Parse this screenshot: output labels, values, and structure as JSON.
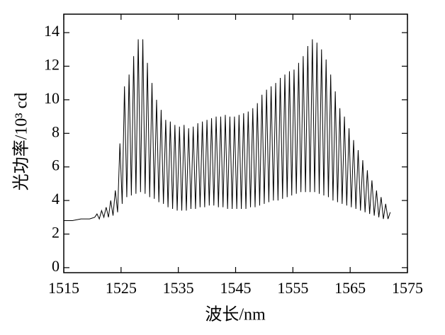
{
  "chart_data": {
    "type": "line",
    "x_label": "波长/nm",
    "y_label": "光功率/10³ cd",
    "xlim": [
      1515,
      1575
    ],
    "xticks": [
      1515,
      1525,
      1535,
      1545,
      1555,
      1565,
      1575
    ],
    "ylim": [
      -0.3,
      15.1
    ],
    "yticks": [
      0,
      2,
      4,
      6,
      8,
      10,
      12,
      14
    ],
    "color": "#000000",
    "x": [
      1515,
      1516.5,
      1518,
      1519.5,
      1520.4,
      1520.8,
      1521.2,
      1521.6,
      1522.0,
      1522.4,
      1522.8,
      1523.2,
      1523.6,
      1524.0,
      1524.4,
      1524.8,
      1525.2,
      1525.6,
      1526.0,
      1526.4,
      1526.8,
      1527.2,
      1527.6,
      1528.0,
      1528.4,
      1528.8,
      1529.2,
      1529.6,
      1530.0,
      1530.4,
      1530.8,
      1531.2,
      1531.6,
      1532.0,
      1532.4,
      1532.8,
      1533.2,
      1533.6,
      1534.0,
      1534.4,
      1534.8,
      1535.2,
      1535.6,
      1536.0,
      1536.4,
      1536.8,
      1537.2,
      1537.6,
      1538.0,
      1538.4,
      1538.8,
      1539.2,
      1539.6,
      1540.0,
      1540.4,
      1540.8,
      1541.2,
      1541.6,
      1542.0,
      1542.4,
      1542.8,
      1543.2,
      1543.6,
      1544.0,
      1544.4,
      1544.8,
      1545.2,
      1545.6,
      1546.0,
      1546.4,
      1546.8,
      1547.2,
      1547.6,
      1548.0,
      1548.4,
      1548.8,
      1549.2,
      1549.6,
      1550.0,
      1550.4,
      1550.8,
      1551.2,
      1551.6,
      1552.0,
      1552.4,
      1552.8,
      1553.2,
      1553.6,
      1554.0,
      1554.4,
      1554.8,
      1555.2,
      1555.6,
      1556.0,
      1556.4,
      1556.8,
      1557.2,
      1557.6,
      1558.0,
      1558.4,
      1558.8,
      1559.2,
      1559.6,
      1560.0,
      1560.4,
      1560.8,
      1561.2,
      1561.6,
      1562.0,
      1562.4,
      1562.8,
      1563.2,
      1563.6,
      1564.0,
      1564.4,
      1564.8,
      1565.2,
      1565.6,
      1566.0,
      1566.4,
      1566.8,
      1567.2,
      1567.6,
      1568.0,
      1568.4,
      1568.8,
      1569.2,
      1569.6,
      1570.0,
      1570.4,
      1570.8,
      1571.2,
      1571.6,
      1572.0
    ],
    "values": [
      2.8,
      2.8,
      2.9,
      2.9,
      3.0,
      3.2,
      2.9,
      3.4,
      3.0,
      3.6,
      3.0,
      4.0,
      3.1,
      4.6,
      3.3,
      7.4,
      3.8,
      10.8,
      4.2,
      11.5,
      4.3,
      12.6,
      4.4,
      13.6,
      4.5,
      13.6,
      4.4,
      12.2,
      4.2,
      11.0,
      4.1,
      10.0,
      3.9,
      9.4,
      3.8,
      8.8,
      3.6,
      8.7,
      3.5,
      8.5,
      3.4,
      8.4,
      3.4,
      8.5,
      3.4,
      8.3,
      3.5,
      8.4,
      3.5,
      8.6,
      3.6,
      8.7,
      3.6,
      8.8,
      3.7,
      8.9,
      3.7,
      9.0,
      3.6,
      9.0,
      3.6,
      9.1,
      3.5,
      9.0,
      3.5,
      9.0,
      3.5,
      9.1,
      3.5,
      9.2,
      3.5,
      9.3,
      3.6,
      9.5,
      3.6,
      9.8,
      3.7,
      10.3,
      3.8,
      10.6,
      3.9,
      10.8,
      4.0,
      11.0,
      4.0,
      11.3,
      4.1,
      11.5,
      4.2,
      11.7,
      4.3,
      11.8,
      4.4,
      12.2,
      4.5,
      12.6,
      4.5,
      13.2,
      4.5,
      13.6,
      4.5,
      13.4,
      4.4,
      13.0,
      4.3,
      12.4,
      4.2,
      11.5,
      4.0,
      10.5,
      3.9,
      9.5,
      3.8,
      9.0,
      3.7,
      8.3,
      3.6,
      7.6,
      3.5,
      7.0,
      3.4,
      6.4,
      3.3,
      5.8,
      3.2,
      5.2,
      3.1,
      4.6,
      3.0,
      4.2,
      2.9,
      3.8,
      2.9,
      3.3
    ]
  }
}
